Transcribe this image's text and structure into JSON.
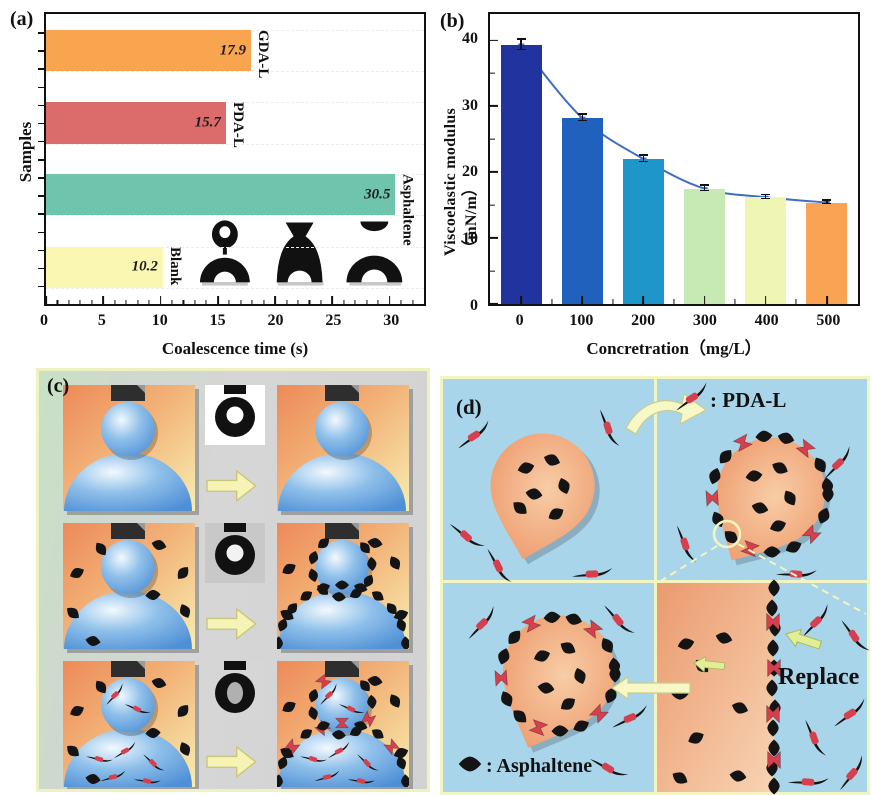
{
  "figure": {
    "panel_a_label": "(a)",
    "panel_b_label": "(b)",
    "panel_c_label": "(c)",
    "panel_d_label": "(d)"
  },
  "chart_data": [
    {
      "id": "panel_a",
      "type": "bar",
      "orientation": "horizontal",
      "xlabel": "Coalescence time (s)",
      "ylabel": "Samples",
      "xlim": [
        0,
        33
      ],
      "xticks": [
        0,
        5,
        10,
        15,
        20,
        25,
        30
      ],
      "minor_tick_step": 1,
      "categories": [
        "GDA-L",
        "PDA-L",
        "Asphaltene",
        "Blank"
      ],
      "values": [
        17.9,
        15.7,
        30.5,
        10.2
      ],
      "value_labels": [
        "17.9",
        "15.7",
        "30.5",
        "10.2"
      ],
      "bar_colors": [
        "#F9A44E",
        "#DC6B6B",
        "#6FC4AD",
        "#FAF7B2"
      ],
      "grid": "faint dashed horizontal",
      "legend_position": "none",
      "inset": "three black droplet coalescence photos near x=15,22,28"
    },
    {
      "id": "panel_b",
      "type": "bar+line",
      "orientation": "vertical",
      "xlabel": "Concretration（mg/L）",
      "ylabel": "Viscoelastic modulus（mN/m）",
      "ylim": [
        0,
        44
      ],
      "yticks": [
        0,
        10,
        20,
        30,
        40
      ],
      "categories": [
        "0",
        "100",
        "200",
        "300",
        "400",
        "500"
      ],
      "values": [
        39.3,
        28.2,
        22.0,
        17.5,
        16.2,
        15.4
      ],
      "errors": [
        0.8,
        0.5,
        0.5,
        0.4,
        0.3,
        0.3
      ],
      "bar_colors": [
        "#20339F",
        "#2161BE",
        "#1F96C9",
        "#C7E9B3",
        "#EFF5B3",
        "#F9A455"
      ],
      "line_color": "#3E6DC2",
      "grid": "off",
      "legend_position": "none"
    }
  ],
  "panel_d": {
    "pda_legend_text": ": PDA-L",
    "asphaltene_legend_text": ": Asphaltene",
    "replace_label": "Replace",
    "colors": {
      "water_blue": "#A9D5EA",
      "oil_peach": "#EE9A6C",
      "pda_red": "#D6404E",
      "asphaltene_black": "#161616",
      "divider_yellow": "#F2F5C0"
    }
  }
}
